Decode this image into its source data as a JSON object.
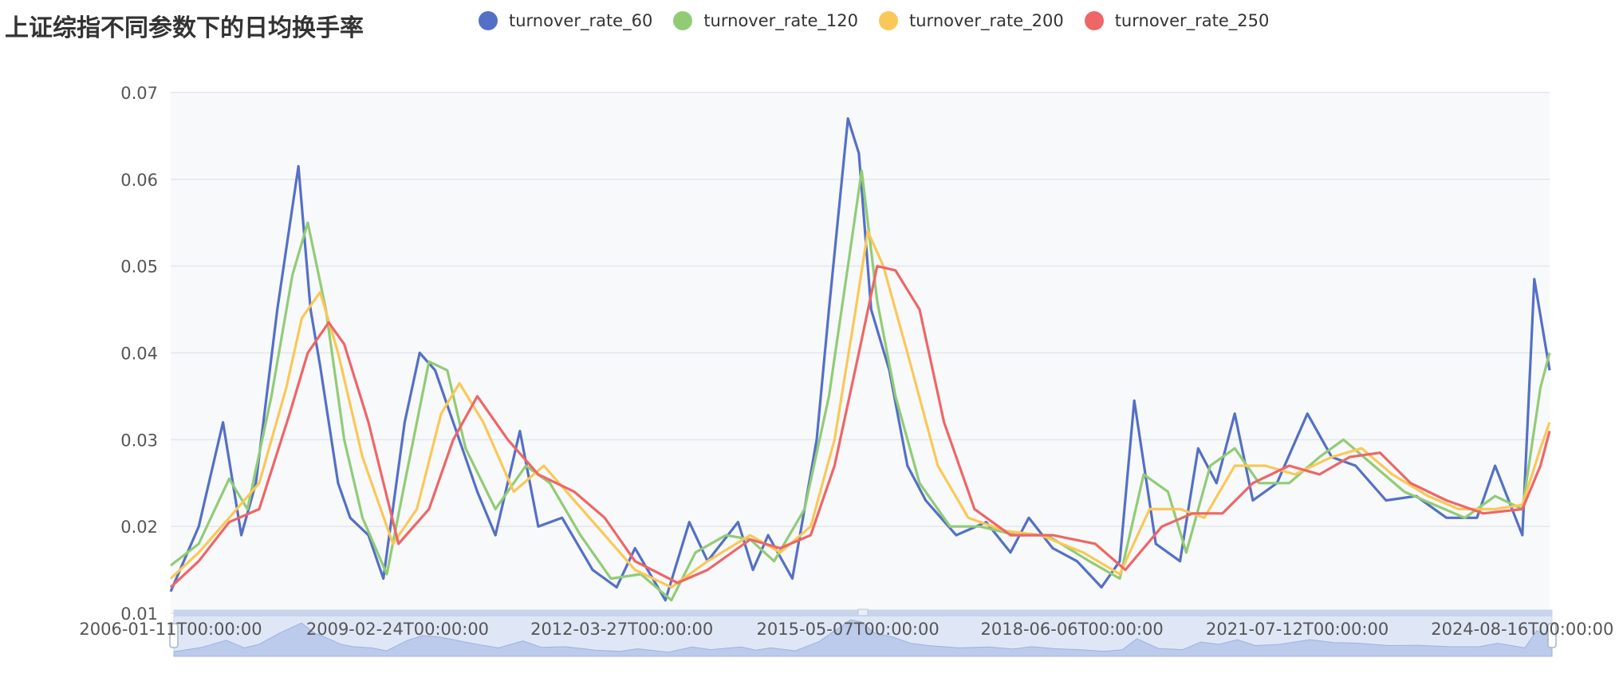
{
  "chart_data": {
    "type": "line",
    "title": "上证综指不同参数下的日均换手率",
    "ylim": [
      0.01,
      0.07
    ],
    "y_ticks": [
      "0.01",
      "0.02",
      "0.03",
      "0.04",
      "0.05",
      "0.06",
      "0.07"
    ],
    "x_tick_labels": [
      "2006-01-11T00:00:00",
      "2009-02-24T00:00:00",
      "2012-03-27T00:00:00",
      "2015-05-07T00:00:00",
      "2018-06-06T00:00:00",
      "2021-07-12T00:00:00",
      "2024-08-16T00:00:00"
    ],
    "x_range": [
      "2006-01-11",
      "2024-12-31"
    ],
    "grid": true,
    "legend_position": "top",
    "data_zoom_slider": true,
    "series": [
      {
        "name": "turnover_rate_60",
        "color": "#5470c6",
        "points": [
          [
            "2006-01-11",
            0.0125
          ],
          [
            "2006-06-01",
            0.02
          ],
          [
            "2006-10-01",
            0.032
          ],
          [
            "2007-01-01",
            0.019
          ],
          [
            "2007-03-15",
            0.025
          ],
          [
            "2007-07-01",
            0.045
          ],
          [
            "2007-10-15",
            0.0615
          ],
          [
            "2007-12-15",
            0.045
          ],
          [
            "2008-02-01",
            0.0385
          ],
          [
            "2008-05-01",
            0.025
          ],
          [
            "2008-07-01",
            0.021
          ],
          [
            "2008-10-01",
            0.019
          ],
          [
            "2008-12-15",
            0.014
          ],
          [
            "2009-04-01",
            0.032
          ],
          [
            "2009-06-15",
            0.04
          ],
          [
            "2009-09-01",
            0.038
          ],
          [
            "2009-12-01",
            0.032
          ],
          [
            "2010-04-01",
            0.024
          ],
          [
            "2010-07-01",
            0.019
          ],
          [
            "2010-11-01",
            0.031
          ],
          [
            "2011-02-01",
            0.02
          ],
          [
            "2011-06-01",
            0.021
          ],
          [
            "2011-11-01",
            0.015
          ],
          [
            "2012-03-01",
            0.013
          ],
          [
            "2012-06-01",
            0.0175
          ],
          [
            "2012-11-01",
            0.0115
          ],
          [
            "2013-03-01",
            0.0205
          ],
          [
            "2013-06-01",
            0.016
          ],
          [
            "2013-11-01",
            0.0205
          ],
          [
            "2014-01-15",
            0.015
          ],
          [
            "2014-04-01",
            0.019
          ],
          [
            "2014-08-01",
            0.014
          ],
          [
            "2014-12-01",
            0.03
          ],
          [
            "2015-02-01",
            0.045
          ],
          [
            "2015-05-07",
            0.067
          ],
          [
            "2015-07-01",
            0.063
          ],
          [
            "2015-09-01",
            0.045
          ],
          [
            "2015-12-01",
            0.038
          ],
          [
            "2016-03-01",
            0.027
          ],
          [
            "2016-06-01",
            0.023
          ],
          [
            "2016-11-01",
            0.019
          ],
          [
            "2017-04-01",
            0.0205
          ],
          [
            "2017-08-01",
            0.017
          ],
          [
            "2017-11-01",
            0.021
          ],
          [
            "2018-03-01",
            0.0175
          ],
          [
            "2018-07-01",
            0.016
          ],
          [
            "2018-11-01",
            0.013
          ],
          [
            "2019-02-01",
            0.016
          ],
          [
            "2019-04-15",
            0.0345
          ],
          [
            "2019-08-01",
            0.018
          ],
          [
            "2019-12-01",
            0.016
          ],
          [
            "2020-03-01",
            0.029
          ],
          [
            "2020-06-01",
            0.025
          ],
          [
            "2020-09-01",
            0.033
          ],
          [
            "2020-12-01",
            0.023
          ],
          [
            "2021-04-01",
            0.025
          ],
          [
            "2021-09-01",
            0.033
          ],
          [
            "2022-01-01",
            0.028
          ],
          [
            "2022-05-01",
            0.027
          ],
          [
            "2022-10-01",
            0.023
          ],
          [
            "2023-03-01",
            0.0235
          ],
          [
            "2023-08-01",
            0.021
          ],
          [
            "2024-01-01",
            0.021
          ],
          [
            "2024-04-01",
            0.027
          ],
          [
            "2024-08-16",
            0.019
          ],
          [
            "2024-10-15",
            0.0485
          ],
          [
            "2024-12-31",
            0.038
          ]
        ]
      },
      {
        "name": "turnover_rate_120",
        "color": "#91cc75",
        "points": [
          [
            "2006-01-11",
            0.0155
          ],
          [
            "2006-06-01",
            0.018
          ],
          [
            "2006-11-01",
            0.0255
          ],
          [
            "2007-02-01",
            0.022
          ],
          [
            "2007-06-01",
            0.035
          ],
          [
            "2007-09-15",
            0.049
          ],
          [
            "2007-12-01",
            0.055
          ],
          [
            "2008-03-01",
            0.045
          ],
          [
            "2008-06-01",
            0.03
          ],
          [
            "2008-09-01",
            0.021
          ],
          [
            "2009-01-01",
            0.0145
          ],
          [
            "2009-04-01",
            0.025
          ],
          [
            "2009-08-01",
            0.039
          ],
          [
            "2009-11-01",
            0.038
          ],
          [
            "2010-02-01",
            0.029
          ],
          [
            "2010-07-01",
            0.022
          ],
          [
            "2010-12-01",
            0.027
          ],
          [
            "2011-04-01",
            0.025
          ],
          [
            "2011-09-01",
            0.019
          ],
          [
            "2012-02-01",
            0.014
          ],
          [
            "2012-07-01",
            0.0145
          ],
          [
            "2012-12-01",
            0.0115
          ],
          [
            "2013-04-01",
            0.017
          ],
          [
            "2013-09-01",
            0.019
          ],
          [
            "2014-01-01",
            0.0185
          ],
          [
            "2014-05-01",
            0.016
          ],
          [
            "2014-10-01",
            0.022
          ],
          [
            "2015-02-01",
            0.035
          ],
          [
            "2015-05-07",
            0.05
          ],
          [
            "2015-07-15",
            0.061
          ],
          [
            "2015-10-01",
            0.046
          ],
          [
            "2016-01-01",
            0.035
          ],
          [
            "2016-05-01",
            0.025
          ],
          [
            "2016-10-01",
            0.02
          ],
          [
            "2017-03-01",
            0.02
          ],
          [
            "2017-09-01",
            0.019
          ],
          [
            "2018-02-01",
            0.019
          ],
          [
            "2018-09-01",
            0.016
          ],
          [
            "2019-02-01",
            0.014
          ],
          [
            "2019-06-01",
            0.026
          ],
          [
            "2019-10-01",
            0.024
          ],
          [
            "2020-01-01",
            0.017
          ],
          [
            "2020-05-01",
            0.027
          ],
          [
            "2020-09-01",
            0.029
          ],
          [
            "2021-01-01",
            0.025
          ],
          [
            "2021-06-01",
            0.025
          ],
          [
            "2021-11-01",
            0.028
          ],
          [
            "2022-03-01",
            0.03
          ],
          [
            "2022-08-01",
            0.027
          ],
          [
            "2023-01-01",
            0.024
          ],
          [
            "2023-06-01",
            0.0225
          ],
          [
            "2023-11-01",
            0.021
          ],
          [
            "2024-04-01",
            0.0235
          ],
          [
            "2024-08-16",
            0.022
          ],
          [
            "2024-11-15",
            0.036
          ],
          [
            "2024-12-31",
            0.04
          ]
        ]
      },
      {
        "name": "turnover_rate_200",
        "color": "#fac858",
        "points": [
          [
            "2006-01-11",
            0.014
          ],
          [
            "2006-06-01",
            0.017
          ],
          [
            "2006-11-01",
            0.021
          ],
          [
            "2007-04-01",
            0.025
          ],
          [
            "2007-08-15",
            0.036
          ],
          [
            "2007-11-01",
            0.044
          ],
          [
            "2008-02-01",
            0.047
          ],
          [
            "2008-05-01",
            0.04
          ],
          [
            "2008-09-01",
            0.028
          ],
          [
            "2009-02-01",
            0.018
          ],
          [
            "2009-06-01",
            0.022
          ],
          [
            "2009-10-01",
            0.033
          ],
          [
            "2010-01-01",
            0.0365
          ],
          [
            "2010-05-01",
            0.032
          ],
          [
            "2010-10-01",
            0.024
          ],
          [
            "2011-03-01",
            0.027
          ],
          [
            "2011-08-01",
            0.023
          ],
          [
            "2012-01-01",
            0.019
          ],
          [
            "2012-06-01",
            0.015
          ],
          [
            "2012-12-01",
            0.013
          ],
          [
            "2013-06-01",
            0.016
          ],
          [
            "2014-01-01",
            0.019
          ],
          [
            "2014-06-01",
            0.017
          ],
          [
            "2014-11-01",
            0.02
          ],
          [
            "2015-03-01",
            0.03
          ],
          [
            "2015-06-15",
            0.045
          ],
          [
            "2015-08-15",
            0.054
          ],
          [
            "2015-11-01",
            0.05
          ],
          [
            "2016-03-01",
            0.04
          ],
          [
            "2016-08-01",
            0.027
          ],
          [
            "2017-01-01",
            0.021
          ],
          [
            "2017-07-01",
            0.0195
          ],
          [
            "2018-01-01",
            0.019
          ],
          [
            "2018-08-01",
            0.017
          ],
          [
            "2019-02-01",
            0.0145
          ],
          [
            "2019-07-01",
            0.022
          ],
          [
            "2019-12-01",
            0.022
          ],
          [
            "2020-04-01",
            0.021
          ],
          [
            "2020-09-01",
            0.027
          ],
          [
            "2021-02-01",
            0.027
          ],
          [
            "2021-07-01",
            0.026
          ],
          [
            "2022-01-01",
            0.028
          ],
          [
            "2022-06-01",
            0.029
          ],
          [
            "2022-11-01",
            0.026
          ],
          [
            "2023-05-01",
            0.0235
          ],
          [
            "2023-10-01",
            0.022
          ],
          [
            "2024-04-01",
            0.022
          ],
          [
            "2024-08-16",
            0.0225
          ],
          [
            "2024-11-15",
            0.029
          ],
          [
            "2024-12-31",
            0.032
          ]
        ]
      },
      {
        "name": "turnover_rate_250",
        "color": "#ee6666",
        "points": [
          [
            "2006-01-11",
            0.013
          ],
          [
            "2006-06-01",
            0.016
          ],
          [
            "2006-11-01",
            0.0205
          ],
          [
            "2007-04-01",
            0.022
          ],
          [
            "2007-09-01",
            0.033
          ],
          [
            "2007-12-01",
            0.04
          ],
          [
            "2008-03-15",
            0.0435
          ],
          [
            "2008-06-01",
            0.041
          ],
          [
            "2008-10-01",
            0.032
          ],
          [
            "2009-03-01",
            0.018
          ],
          [
            "2009-08-01",
            0.022
          ],
          [
            "2009-12-01",
            0.03
          ],
          [
            "2010-04-01",
            0.035
          ],
          [
            "2010-09-01",
            0.03
          ],
          [
            "2011-02-01",
            0.026
          ],
          [
            "2011-08-01",
            0.024
          ],
          [
            "2012-01-01",
            0.021
          ],
          [
            "2012-06-01",
            0.016
          ],
          [
            "2013-01-01",
            0.0135
          ],
          [
            "2013-06-01",
            0.015
          ],
          [
            "2014-01-01",
            0.0185
          ],
          [
            "2014-06-01",
            0.0175
          ],
          [
            "2014-11-01",
            0.019
          ],
          [
            "2015-03-01",
            0.027
          ],
          [
            "2015-07-01",
            0.04
          ],
          [
            "2015-10-01",
            0.05
          ],
          [
            "2016-01-01",
            0.0495
          ],
          [
            "2016-05-01",
            0.045
          ],
          [
            "2016-09-01",
            0.032
          ],
          [
            "2017-02-01",
            0.022
          ],
          [
            "2017-08-01",
            0.019
          ],
          [
            "2018-03-01",
            0.019
          ],
          [
            "2018-10-01",
            0.018
          ],
          [
            "2019-03-01",
            0.015
          ],
          [
            "2019-09-01",
            0.02
          ],
          [
            "2020-02-01",
            0.0215
          ],
          [
            "2020-07-01",
            0.0215
          ],
          [
            "2020-12-01",
            0.025
          ],
          [
            "2021-06-01",
            0.027
          ],
          [
            "2021-11-01",
            0.026
          ],
          [
            "2022-04-01",
            0.028
          ],
          [
            "2022-09-01",
            0.0285
          ],
          [
            "2023-02-01",
            0.025
          ],
          [
            "2023-08-01",
            0.023
          ],
          [
            "2024-02-01",
            0.0215
          ],
          [
            "2024-08-16",
            0.022
          ],
          [
            "2024-11-15",
            0.027
          ],
          [
            "2024-12-31",
            0.031
          ]
        ]
      }
    ]
  }
}
